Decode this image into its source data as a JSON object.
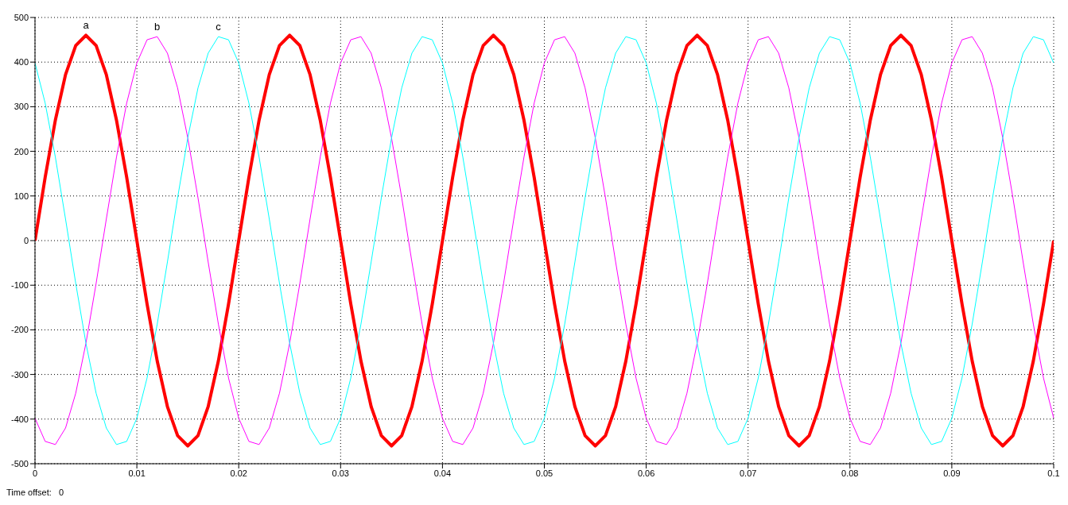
{
  "chart_data": {
    "type": "line",
    "x": [
      0,
      0.001,
      0.002,
      0.003,
      0.004,
      0.005,
      0.006,
      0.007,
      0.008,
      0.009,
      0.01,
      0.011,
      0.012,
      0.013,
      0.014,
      0.015,
      0.016,
      0.017,
      0.018,
      0.019,
      0.02,
      0.021,
      0.022,
      0.023,
      0.024,
      0.025,
      0.026,
      0.027,
      0.028,
      0.029,
      0.03,
      0.031,
      0.032,
      0.033,
      0.034,
      0.035,
      0.036,
      0.037,
      0.038,
      0.039,
      0.04,
      0.041,
      0.042,
      0.043,
      0.044,
      0.045,
      0.046,
      0.047,
      0.048,
      0.049,
      0.05,
      0.051,
      0.052,
      0.053,
      0.054,
      0.055,
      0.056,
      0.057,
      0.058,
      0.059,
      0.06,
      0.061,
      0.062,
      0.063,
      0.064,
      0.065,
      0.066,
      0.067,
      0.068,
      0.069,
      0.07,
      0.071,
      0.072,
      0.073,
      0.074,
      0.075,
      0.076,
      0.077,
      0.078,
      0.079,
      0.08,
      0.081,
      0.082,
      0.083,
      0.084,
      0.085,
      0.086,
      0.087,
      0.088,
      0.089,
      0.09,
      0.091,
      0.092,
      0.093,
      0.094,
      0.095,
      0.096,
      0.097,
      0.098,
      0.099,
      0.1
    ],
    "series": [
      {
        "name": "a",
        "color": "#ff0000",
        "values": [
          0,
          142,
          270,
          372,
          437,
          460,
          437,
          372,
          270,
          142,
          0,
          -142,
          -270,
          -372,
          -437,
          -460,
          -437,
          -372,
          -270,
          -142,
          0,
          142,
          270,
          372,
          437,
          460,
          437,
          372,
          270,
          142,
          0,
          -142,
          -270,
          -372,
          -437,
          -460,
          -437,
          -372,
          -270,
          -142,
          0,
          142,
          270,
          372,
          437,
          460,
          437,
          372,
          270,
          142,
          0,
          -142,
          -270,
          -372,
          -437,
          -460,
          -437,
          -372,
          -270,
          -142,
          0,
          142,
          270,
          372,
          437,
          460,
          437,
          372,
          270,
          142,
          0,
          -142,
          -270,
          -372,
          -437,
          -460,
          -437,
          -372,
          -270,
          -142,
          0,
          142,
          270,
          372,
          437,
          460,
          437,
          372,
          270,
          142,
          0,
          -142,
          -270,
          -372,
          -437,
          -460,
          -437,
          -372,
          -270,
          -142,
          0
        ]
      },
      {
        "name": "b",
        "color": "#ff00ff",
        "values": [
          -398,
          -450,
          -457,
          -420,
          -342,
          -230,
          -96,
          48,
          187,
          308,
          398,
          450,
          457,
          420,
          342,
          230,
          96,
          -48,
          -187,
          -308,
          -398,
          -450,
          -457,
          -420,
          -342,
          -230,
          -96,
          48,
          187,
          308,
          398,
          450,
          457,
          420,
          342,
          230,
          96,
          -48,
          -187,
          -308,
          -398,
          -450,
          -457,
          -420,
          -342,
          -230,
          -96,
          48,
          187,
          308,
          398,
          450,
          457,
          420,
          342,
          230,
          96,
          -48,
          -187,
          -308,
          -398,
          -450,
          -457,
          -420,
          -342,
          -230,
          -96,
          48,
          187,
          308,
          398,
          450,
          457,
          420,
          342,
          230,
          96,
          -48,
          -187,
          -308,
          -398,
          -450,
          -457,
          -420,
          -342,
          -230,
          -96,
          48,
          187,
          308,
          398,
          450,
          457,
          420,
          342,
          230,
          96,
          -48,
          -187,
          -308,
          -398
        ]
      },
      {
        "name": "c",
        "color": "#00ffff",
        "values": [
          398,
          308,
          187,
          48,
          -96,
          -230,
          -342,
          -420,
          -457,
          -450,
          -398,
          -308,
          -187,
          -48,
          96,
          230,
          342,
          420,
          457,
          450,
          398,
          308,
          187,
          48,
          -96,
          -230,
          -342,
          -420,
          -457,
          -450,
          -398,
          -308,
          -187,
          -48,
          96,
          230,
          342,
          420,
          457,
          450,
          398,
          308,
          187,
          48,
          -96,
          -230,
          -342,
          -420,
          -457,
          -450,
          -398,
          -308,
          -187,
          -48,
          96,
          230,
          342,
          420,
          457,
          450,
          398,
          308,
          187,
          48,
          -96,
          -230,
          -342,
          -420,
          -457,
          -450,
          -398,
          -308,
          -187,
          -48,
          96,
          230,
          342,
          420,
          457,
          450,
          398,
          308,
          187,
          48,
          -96,
          -230,
          -342,
          -420,
          -457,
          -450,
          -398,
          -308,
          -187,
          -48,
          96,
          230,
          342,
          420,
          457,
          450,
          398
        ]
      }
    ],
    "xlim": [
      0,
      0.1
    ],
    "xticks": [
      0,
      0.01,
      0.02,
      0.03,
      0.04,
      0.05,
      0.06,
      0.07,
      0.08,
      0.09,
      0.1
    ],
    "ylim": [
      -500,
      500
    ],
    "yticks": [
      -500,
      -400,
      -300,
      -200,
      -100,
      0,
      100,
      200,
      300,
      400,
      500
    ],
    "grid": true,
    "marker": "none",
    "line_style": "solid",
    "annotations": [
      "Time offset:   0"
    ]
  }
}
